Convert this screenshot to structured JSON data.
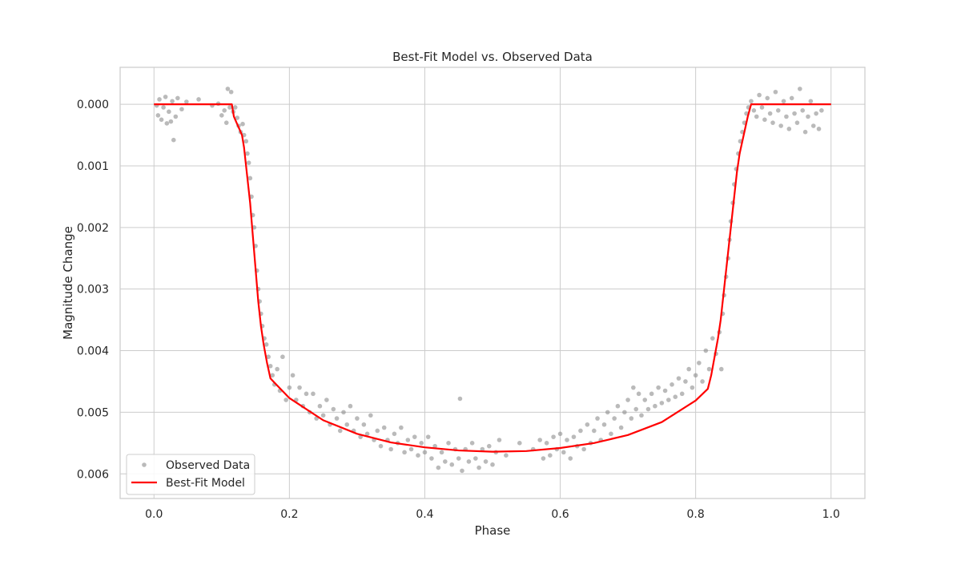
{
  "chart_data": {
    "type": "scatter",
    "title": "Best-Fit Model vs. Observed Data",
    "xlabel": "Phase",
    "ylabel": "Magnitude Change",
    "xlim": [
      -0.05,
      1.05
    ],
    "ylim": [
      0.0064,
      -0.0006
    ],
    "y_inverted": true,
    "x_ticks": [
      0.0,
      0.2,
      0.4,
      0.6,
      0.8,
      1.0
    ],
    "x_tick_labels": [
      "0.0",
      "0.2",
      "0.4",
      "0.6",
      "0.8",
      "1.0"
    ],
    "y_ticks": [
      0.0,
      0.001,
      0.002,
      0.003,
      0.004,
      0.005,
      0.006
    ],
    "y_tick_labels": [
      "0.000",
      "0.001",
      "0.002",
      "0.003",
      "0.004",
      "0.005",
      "0.006"
    ],
    "grid": true,
    "legend_position": "bottom-left",
    "colors": {
      "observed": "#8c8c8c",
      "model": "#ff0000",
      "grid": "#cccccc",
      "frame": "#cccccc"
    },
    "series": [
      {
        "name": "Observed Data",
        "kind": "scatter",
        "points": [
          [
            0.004,
            2e-05
          ],
          [
            0.006,
            0.00018
          ],
          [
            0.008,
            -8e-05
          ],
          [
            0.011,
            0.00025
          ],
          [
            0.014,
            5e-05
          ],
          [
            0.017,
            -0.00012
          ],
          [
            0.019,
            0.00031
          ],
          [
            0.022,
            0.00012
          ],
          [
            0.025,
            0.00028
          ],
          [
            0.027,
            -5e-05
          ],
          [
            0.029,
            0.00058
          ],
          [
            0.032,
            0.0002
          ],
          [
            0.035,
            -0.0001
          ],
          [
            0.041,
            8e-05
          ],
          [
            0.048,
            -4e-05
          ],
          [
            0.066,
            -8e-05
          ],
          [
            0.086,
            2e-05
          ],
          [
            0.095,
            -1e-05
          ],
          [
            0.1,
            0.00018
          ],
          [
            0.104,
            0.0001
          ],
          [
            0.107,
            0.0003
          ],
          [
            0.109,
            -0.00025
          ],
          [
            0.112,
            5e-05
          ],
          [
            0.114,
            -0.0002
          ],
          [
            0.117,
            0.00012
          ],
          [
            0.12,
            5e-05
          ],
          [
            0.123,
            0.00022
          ],
          [
            0.125,
            0.00035
          ],
          [
            0.128,
            0.00045
          ],
          [
            0.131,
            0.00032
          ],
          [
            0.133,
            0.0005
          ],
          [
            0.136,
            0.0006
          ],
          [
            0.138,
            0.0008
          ],
          [
            0.14,
            0.00095
          ],
          [
            0.142,
            0.0012
          ],
          [
            0.144,
            0.0015
          ],
          [
            0.146,
            0.0018
          ],
          [
            0.148,
            0.002
          ],
          [
            0.15,
            0.0023
          ],
          [
            0.152,
            0.0027
          ],
          [
            0.154,
            0.003
          ],
          [
            0.156,
            0.0032
          ],
          [
            0.158,
            0.0034
          ],
          [
            0.16,
            0.0036
          ],
          [
            0.163,
            0.0038
          ],
          [
            0.166,
            0.0039
          ],
          [
            0.169,
            0.0041
          ],
          [
            0.172,
            0.00425
          ],
          [
            0.175,
            0.0044
          ],
          [
            0.178,
            0.00455
          ],
          [
            0.182,
            0.0043
          ],
          [
            0.186,
            0.00465
          ],
          [
            0.19,
            0.0041
          ],
          [
            0.195,
            0.0048
          ],
          [
            0.2,
            0.0046
          ],
          [
            0.205,
            0.0044
          ],
          [
            0.21,
            0.0048
          ],
          [
            0.215,
            0.0046
          ],
          [
            0.22,
            0.0049
          ],
          [
            0.225,
            0.0047
          ],
          [
            0.23,
            0.005
          ],
          [
            0.235,
            0.0047
          ],
          [
            0.24,
            0.0051
          ],
          [
            0.245,
            0.0049
          ],
          [
            0.25,
            0.00505
          ],
          [
            0.255,
            0.0048
          ],
          [
            0.26,
            0.0052
          ],
          [
            0.265,
            0.00495
          ],
          [
            0.27,
            0.0051
          ],
          [
            0.275,
            0.0053
          ],
          [
            0.28,
            0.005
          ],
          [
            0.285,
            0.0052
          ],
          [
            0.29,
            0.0049
          ],
          [
            0.295,
            0.0053
          ],
          [
            0.3,
            0.0051
          ],
          [
            0.305,
            0.0054
          ],
          [
            0.31,
            0.0052
          ],
          [
            0.315,
            0.00535
          ],
          [
            0.32,
            0.00505
          ],
          [
            0.325,
            0.00545
          ],
          [
            0.33,
            0.0053
          ],
          [
            0.335,
            0.00555
          ],
          [
            0.34,
            0.00525
          ],
          [
            0.345,
            0.00545
          ],
          [
            0.35,
            0.0056
          ],
          [
            0.355,
            0.00535
          ],
          [
            0.36,
            0.0055
          ],
          [
            0.365,
            0.00525
          ],
          [
            0.37,
            0.00565
          ],
          [
            0.375,
            0.00545
          ],
          [
            0.38,
            0.0056
          ],
          [
            0.385,
            0.0054
          ],
          [
            0.39,
            0.0057
          ],
          [
            0.395,
            0.0055
          ],
          [
            0.4,
            0.00565
          ],
          [
            0.405,
            0.0054
          ],
          [
            0.41,
            0.00575
          ],
          [
            0.415,
            0.00555
          ],
          [
            0.42,
            0.0059
          ],
          [
            0.425,
            0.00565
          ],
          [
            0.43,
            0.0058
          ],
          [
            0.435,
            0.0055
          ],
          [
            0.44,
            0.00585
          ],
          [
            0.445,
            0.0056
          ],
          [
            0.45,
            0.00575
          ],
          [
            0.452,
            0.00478
          ],
          [
            0.455,
            0.00595
          ],
          [
            0.46,
            0.0056
          ],
          [
            0.465,
            0.0058
          ],
          [
            0.47,
            0.0055
          ],
          [
            0.475,
            0.00575
          ],
          [
            0.48,
            0.0059
          ],
          [
            0.485,
            0.0056
          ],
          [
            0.49,
            0.0058
          ],
          [
            0.495,
            0.00555
          ],
          [
            0.5,
            0.00585
          ],
          [
            0.505,
            0.00565
          ],
          [
            0.51,
            0.00545
          ],
          [
            0.52,
            0.0057
          ],
          [
            0.54,
            0.0055
          ],
          [
            0.56,
            0.0056
          ],
          [
            0.57,
            0.00545
          ],
          [
            0.575,
            0.00575
          ],
          [
            0.58,
            0.0055
          ],
          [
            0.585,
            0.0057
          ],
          [
            0.59,
            0.0054
          ],
          [
            0.595,
            0.0056
          ],
          [
            0.6,
            0.00535
          ],
          [
            0.605,
            0.00565
          ],
          [
            0.61,
            0.00545
          ],
          [
            0.615,
            0.00575
          ],
          [
            0.62,
            0.0054
          ],
          [
            0.625,
            0.00555
          ],
          [
            0.63,
            0.0053
          ],
          [
            0.635,
            0.0056
          ],
          [
            0.64,
            0.0052
          ],
          [
            0.645,
            0.0055
          ],
          [
            0.65,
            0.0053
          ],
          [
            0.655,
            0.0051
          ],
          [
            0.66,
            0.00545
          ],
          [
            0.665,
            0.0052
          ],
          [
            0.67,
            0.005
          ],
          [
            0.675,
            0.00535
          ],
          [
            0.68,
            0.0051
          ],
          [
            0.685,
            0.0049
          ],
          [
            0.69,
            0.00525
          ],
          [
            0.695,
            0.005
          ],
          [
            0.7,
            0.0048
          ],
          [
            0.705,
            0.0051
          ],
          [
            0.708,
            0.0046
          ],
          [
            0.712,
            0.00495
          ],
          [
            0.716,
            0.0047
          ],
          [
            0.72,
            0.00505
          ],
          [
            0.725,
            0.0048
          ],
          [
            0.73,
            0.00495
          ],
          [
            0.735,
            0.0047
          ],
          [
            0.74,
            0.0049
          ],
          [
            0.745,
            0.0046
          ],
          [
            0.75,
            0.00485
          ],
          [
            0.755,
            0.00465
          ],
          [
            0.76,
            0.0048
          ],
          [
            0.765,
            0.00455
          ],
          [
            0.77,
            0.00475
          ],
          [
            0.775,
            0.00445
          ],
          [
            0.78,
            0.0047
          ],
          [
            0.785,
            0.0045
          ],
          [
            0.79,
            0.0043
          ],
          [
            0.795,
            0.0046
          ],
          [
            0.8,
            0.0044
          ],
          [
            0.805,
            0.0042
          ],
          [
            0.81,
            0.0045
          ],
          [
            0.815,
            0.004
          ],
          [
            0.82,
            0.0043
          ],
          [
            0.825,
            0.0038
          ],
          [
            0.83,
            0.00405
          ],
          [
            0.835,
            0.0037
          ],
          [
            0.838,
            0.0043
          ],
          [
            0.84,
            0.0034
          ],
          [
            0.842,
            0.0031
          ],
          [
            0.845,
            0.0028
          ],
          [
            0.848,
            0.0025
          ],
          [
            0.85,
            0.0022
          ],
          [
            0.852,
            0.0019
          ],
          [
            0.855,
            0.0016
          ],
          [
            0.857,
            0.0013
          ],
          [
            0.86,
            0.00105
          ],
          [
            0.863,
            0.0008
          ],
          [
            0.866,
            0.0006
          ],
          [
            0.869,
            0.00045
          ],
          [
            0.872,
            0.0003
          ],
          [
            0.875,
            0.00015
          ],
          [
            0.878,
            5e-05
          ],
          [
            0.882,
            -5e-05
          ],
          [
            0.886,
            0.0001
          ],
          [
            0.89,
            0.0002
          ],
          [
            0.894,
            -0.00015
          ],
          [
            0.898,
            5e-05
          ],
          [
            0.902,
            0.00025
          ],
          [
            0.906,
            -0.0001
          ],
          [
            0.91,
            0.00015
          ],
          [
            0.914,
            0.0003
          ],
          [
            0.918,
            -0.0002
          ],
          [
            0.922,
            0.0001
          ],
          [
            0.926,
            0.00035
          ],
          [
            0.93,
            -5e-05
          ],
          [
            0.934,
            0.0002
          ],
          [
            0.938,
            0.0004
          ],
          [
            0.942,
            -0.0001
          ],
          [
            0.946,
            0.00015
          ],
          [
            0.95,
            0.0003
          ],
          [
            0.954,
            -0.00025
          ],
          [
            0.958,
            0.0001
          ],
          [
            0.962,
            0.00045
          ],
          [
            0.966,
            0.0002
          ],
          [
            0.97,
            -5e-05
          ],
          [
            0.974,
            0.00035
          ],
          [
            0.978,
            0.00015
          ],
          [
            0.982,
            0.0004
          ],
          [
            0.986,
            0.0001
          ]
        ]
      },
      {
        "name": "Best-Fit Model",
        "kind": "line",
        "points": [
          [
            0.0,
            0.0
          ],
          [
            0.115,
            0.0
          ],
          [
            0.118,
            0.0002
          ],
          [
            0.122,
            0.0003
          ],
          [
            0.126,
            0.0004
          ],
          [
            0.13,
            0.0005
          ],
          [
            0.133,
            0.0007
          ],
          [
            0.136,
            0.001
          ],
          [
            0.139,
            0.0013
          ],
          [
            0.142,
            0.0016
          ],
          [
            0.145,
            0.002
          ],
          [
            0.148,
            0.0024
          ],
          [
            0.151,
            0.0028
          ],
          [
            0.154,
            0.0032
          ],
          [
            0.158,
            0.0036
          ],
          [
            0.162,
            0.0039
          ],
          [
            0.167,
            0.0042
          ],
          [
            0.172,
            0.00445
          ],
          [
            0.178,
            0.00452
          ],
          [
            0.2,
            0.00477
          ],
          [
            0.25,
            0.00513
          ],
          [
            0.3,
            0.00535
          ],
          [
            0.35,
            0.00549
          ],
          [
            0.4,
            0.00557
          ],
          [
            0.45,
            0.00562
          ],
          [
            0.5,
            0.00564
          ],
          [
            0.55,
            0.00563
          ],
          [
            0.6,
            0.00558
          ],
          [
            0.65,
            0.0055
          ],
          [
            0.7,
            0.00537
          ],
          [
            0.75,
            0.00516
          ],
          [
            0.8,
            0.00481
          ],
          [
            0.818,
            0.00462
          ],
          [
            0.823,
            0.0044
          ],
          [
            0.828,
            0.0041
          ],
          [
            0.833,
            0.0038
          ],
          [
            0.837,
            0.0035
          ],
          [
            0.841,
            0.0031
          ],
          [
            0.845,
            0.0027
          ],
          [
            0.849,
            0.0023
          ],
          [
            0.853,
            0.0019
          ],
          [
            0.857,
            0.0015
          ],
          [
            0.861,
            0.0011
          ],
          [
            0.865,
            0.0008
          ],
          [
            0.869,
            0.0006
          ],
          [
            0.873,
            0.0004
          ],
          [
            0.877,
            0.0002
          ],
          [
            0.882,
            0.0
          ],
          [
            1.0,
            0.0
          ]
        ]
      }
    ]
  }
}
